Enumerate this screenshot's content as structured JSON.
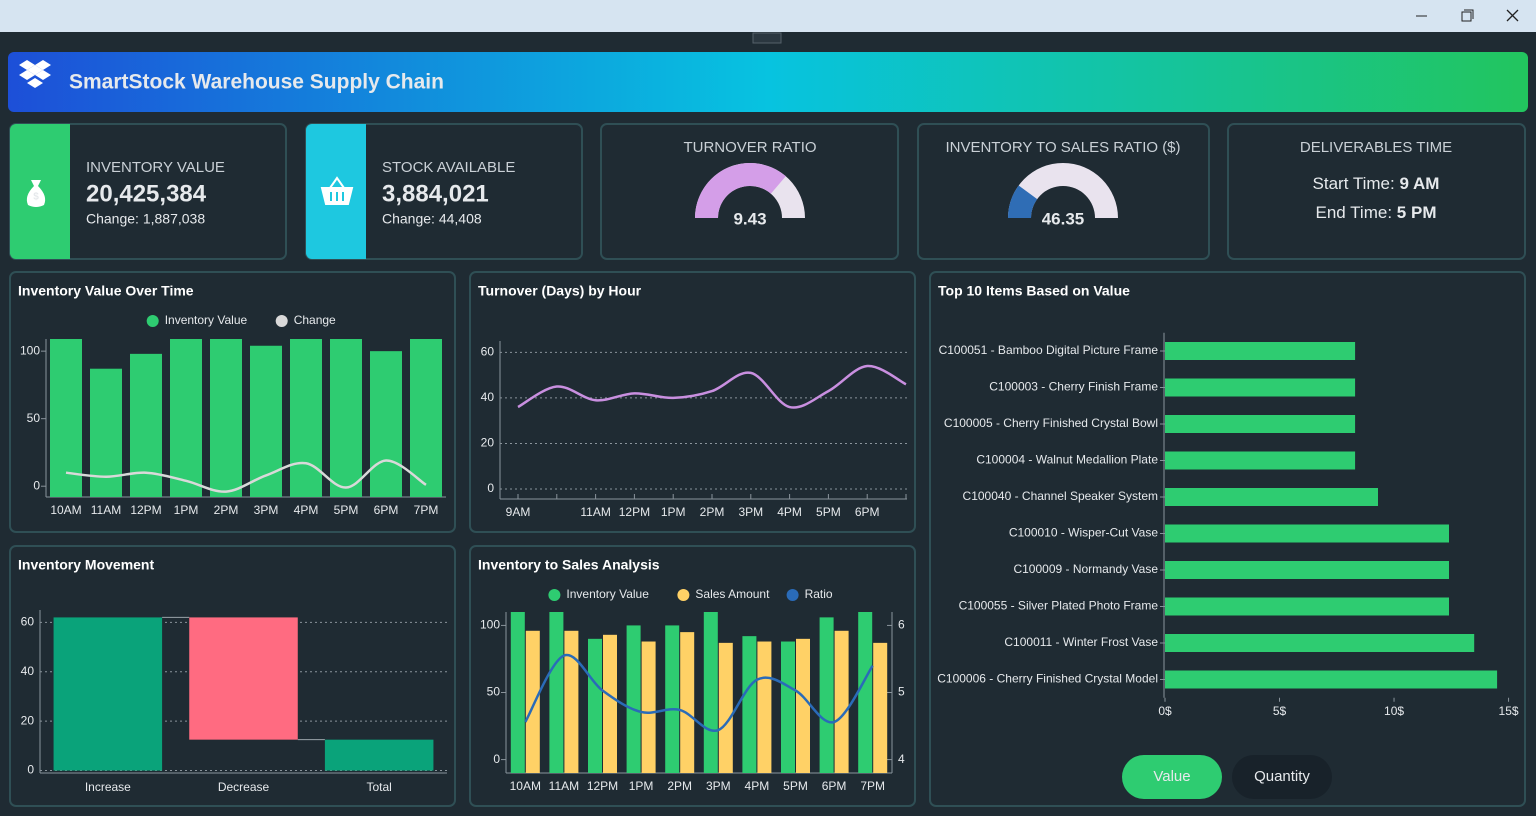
{
  "header": {
    "title": "SmartStock Warehouse Supply Chain"
  },
  "kpis": [
    {
      "label": "INVENTORY VALUE",
      "value": "20,425,384",
      "change": "Change: 1,887,038"
    },
    {
      "label": "STOCK AVAILABLE",
      "value": "3,884,021",
      "change": "Change: 44,408"
    }
  ],
  "deliverables": {
    "title": "DELIVERABLES TIME",
    "start_label": "Start Time:",
    "start": "9 AM",
    "end_label": "End Time:",
    "end": "5 PM"
  },
  "chart_data": [
    {
      "type": "gauge",
      "title": "TURNOVER RATIO",
      "value": 9.43,
      "ylim": [
        0,
        13
      ],
      "color": "#d49ee8",
      "track_color": "#e9e3ee"
    },
    {
      "type": "gauge",
      "title": "INVENTORY TO SALES RATIO ($)",
      "value": 46.35,
      "ylim": [
        0,
        230
      ],
      "color": "#2f6db5",
      "track_color": "#e9e3ee"
    },
    {
      "type": "bar",
      "title": "Inventory Value Over Time",
      "categories": [
        "10AM",
        "11AM",
        "12PM",
        "1PM",
        "2PM",
        "3PM",
        "4PM",
        "5PM",
        "6PM",
        "7PM"
      ],
      "series": [
        {
          "name": "Inventory Value",
          "color": "#2ecc71",
          "values": [
            109,
            87,
            98,
            109,
            109,
            104,
            109,
            109,
            100,
            109
          ]
        },
        {
          "name": "Change",
          "type": "line",
          "color": "#d9d9d9",
          "values": [
            10,
            7,
            10,
            4,
            -4,
            8,
            17,
            -1,
            19,
            1
          ]
        }
      ],
      "ylim": [
        -8,
        109
      ],
      "yticks": [
        0,
        50,
        100
      ],
      "grid": false
    },
    {
      "type": "line",
      "title": "Turnover (Days) by Hour",
      "categories": [
        "9AM",
        null,
        "11AM",
        "12PM",
        "1PM",
        "2PM",
        "3PM",
        "4PM",
        "5PM",
        "6PM",
        null
      ],
      "series": [
        {
          "color": "#c98fe0",
          "values": [
            36,
            45,
            39,
            42,
            40,
            43,
            51,
            36,
            43,
            54,
            46
          ]
        }
      ],
      "ylim": [
        0,
        65
      ],
      "yticks": [
        0,
        20,
        40,
        60
      ],
      "grid": true
    },
    {
      "type": "hbar",
      "title": "Top 10 Items Based on Value",
      "categories": [
        "C100051 - Bamboo Digital Picture Frame",
        "C100003 - Cherry Finish Frame",
        "C100005 - Cherry Finished Crystal Bowl",
        "C100004 - Walnut Medallion Plate",
        "C100040 - Channel Speaker System",
        "C100010 - Wisper-Cut Vase",
        "C100009 - Normandy Vase",
        "C100055 - Silver Plated Photo Frame",
        "C100011 - Winter Frost Vase",
        "C100006 - Cherry Finished Crystal Model"
      ],
      "values": [
        8.3,
        8.3,
        8.3,
        8.3,
        9.3,
        12.4,
        12.4,
        12.4,
        13.5,
        14.5
      ],
      "color": "#2ecc71",
      "xlim": [
        0,
        15.5
      ],
      "xticks": [
        {
          "value": 0,
          "label": "0$"
        },
        {
          "value": 5,
          "label": "5$"
        },
        {
          "value": 10,
          "label": "10$"
        },
        {
          "value": 15,
          "label": "15$"
        }
      ]
    },
    {
      "type": "waterfall",
      "title": "Inventory Movement",
      "categories": [
        "Increase",
        "Decrease",
        "Total"
      ],
      "values": [
        62,
        -49.5,
        12.5
      ],
      "colors": [
        "#0aa37a",
        "#ff6b81",
        "#0aa37a"
      ],
      "ylim": [
        -1,
        65
      ],
      "yticks": [
        0,
        20,
        40,
        60
      ],
      "grid": true
    },
    {
      "type": "bar",
      "title": "Inventory to Sales Analysis",
      "categories": [
        "10AM",
        "11AM",
        "12PM",
        "1PM",
        "2PM",
        "3PM",
        "4PM",
        "5PM",
        "6PM",
        "7PM"
      ],
      "series": [
        {
          "name": "Inventory Value",
          "color": "#2ecc71",
          "values": [
            110,
            110,
            90,
            100,
            100,
            110,
            92,
            88,
            106,
            110
          ]
        },
        {
          "name": "Sales Amount",
          "color": "#ffd166",
          "values": [
            96,
            96,
            93,
            88,
            95,
            87,
            88,
            90,
            96,
            87
          ]
        },
        {
          "name": "Ratio",
          "type": "line",
          "axis": "y2",
          "color": "#2a6bb8",
          "values": [
            4.56,
            5.55,
            5.03,
            4.71,
            4.74,
            4.44,
            5.19,
            5.03,
            4.56,
            5.4
          ]
        }
      ],
      "ylim": [
        -10,
        110
      ],
      "yticks": [
        0,
        50,
        100
      ],
      "y2lim": [
        3.8,
        6.2
      ],
      "y2ticks": [
        4,
        5,
        6
      ],
      "grid": false
    }
  ],
  "buttons": [
    "Value",
    "Quantity"
  ]
}
